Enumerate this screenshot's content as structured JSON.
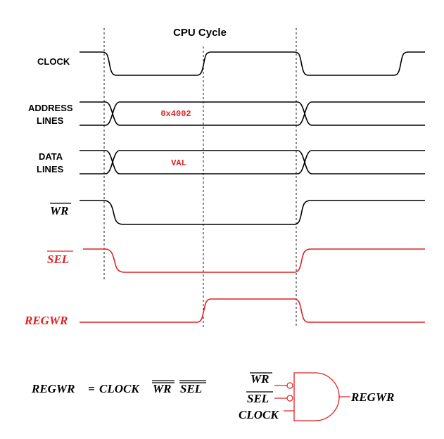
{
  "colors": {
    "black": "#000000",
    "red": "#e02020"
  },
  "title": "CPU Cycle",
  "signals": {
    "clock": "CLOCK",
    "address_line1": "ADDRESS",
    "address_line2": "LINES",
    "data_line1": "DATA",
    "data_line2": "LINES",
    "wr": "WR",
    "sel": "SEL",
    "regwr": "REGWR"
  },
  "values": {
    "address": "0x4002",
    "data": "VAL"
  },
  "equation": {
    "lhs": "REGWR",
    "eq": "=",
    "clock": "CLOCK",
    "wr": "WR",
    "sel": "SEL"
  },
  "gate": {
    "in_wr": "WR",
    "in_sel": "SEL",
    "in_clock": "CLOCK",
    "out": "REGWR"
  }
}
